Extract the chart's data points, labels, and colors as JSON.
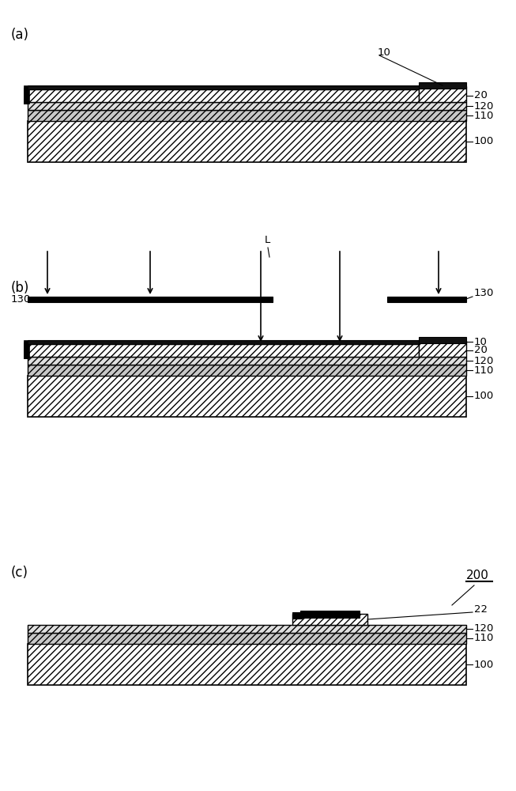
{
  "bg_color": "#ffffff",
  "panel_labels": [
    "(a)",
    "(b)",
    "(c)"
  ],
  "layer_ids_abc": [
    "10",
    "20",
    "120",
    "110",
    "100"
  ],
  "layer_ids_c": [
    "22",
    "120",
    "110",
    "100"
  ],
  "fig_w": 6.53,
  "fig_h": 10.0,
  "dpi": 100
}
